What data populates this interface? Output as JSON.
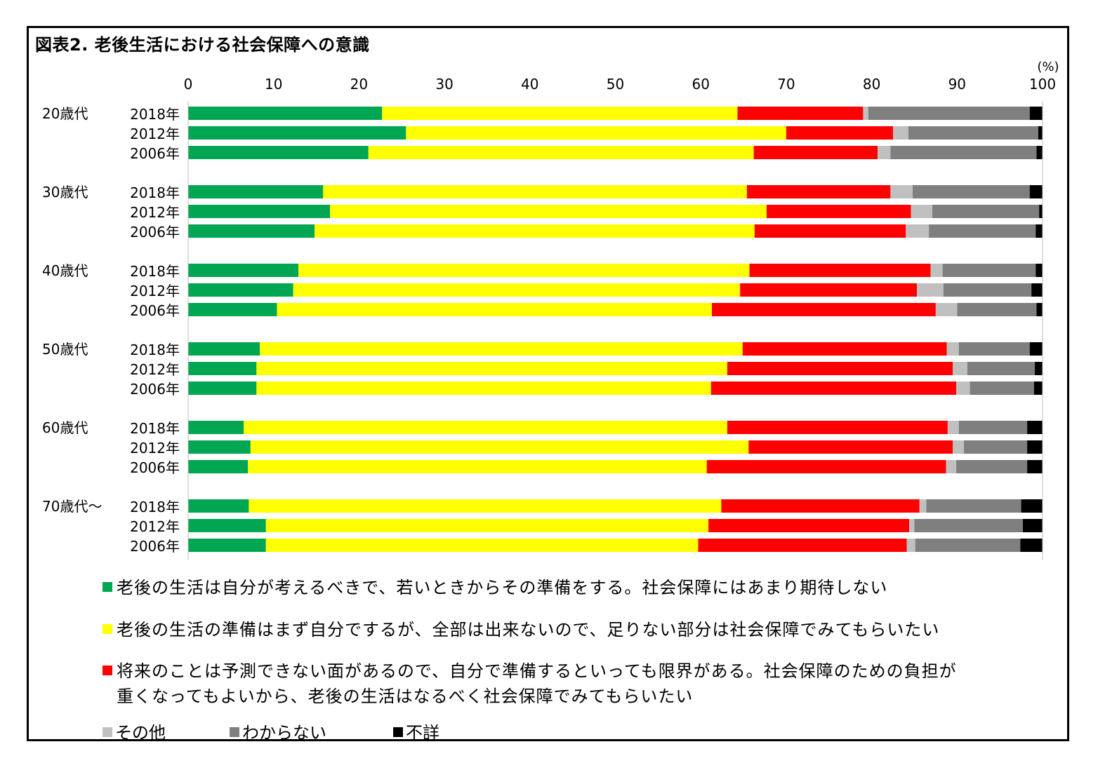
{
  "title": "図表2.  老後生活における社会保障への意識",
  "chart_data": {
    "type": "bar",
    "orientation": "horizontal",
    "stacked": true,
    "unit": "(%)",
    "xlim": [
      0,
      100
    ],
    "x_ticks": [
      "0",
      "10",
      "20",
      "30",
      "40",
      "50",
      "60",
      "70",
      "80",
      "90",
      "100"
    ],
    "groups": [
      {
        "label": "20歳代",
        "rows": [
          {
            "label": "2018年",
            "values": [
              22.7,
              41.6,
              14.7,
              0.6,
              18.9,
              1.5
            ]
          },
          {
            "label": "2012年",
            "values": [
              25.5,
              44.5,
              12.5,
              1.8,
              15.2,
              0.5
            ]
          },
          {
            "label": "2006年",
            "values": [
              21.1,
              45.1,
              14.5,
              1.5,
              17.1,
              0.7
            ]
          }
        ]
      },
      {
        "label": "30歳代",
        "rows": [
          {
            "label": "2018年",
            "values": [
              15.8,
              49.6,
              16.8,
              2.6,
              13.7,
              1.5
            ]
          },
          {
            "label": "2012年",
            "values": [
              16.6,
              51.1,
              16.9,
              2.5,
              12.5,
              0.4
            ]
          },
          {
            "label": "2006年",
            "values": [
              14.8,
              51.5,
              17.7,
              2.7,
              12.5,
              0.8
            ]
          }
        ]
      },
      {
        "label": "40歳代",
        "rows": [
          {
            "label": "2018年",
            "values": [
              12.9,
              52.8,
              21.2,
              1.4,
              10.9,
              0.8
            ]
          },
          {
            "label": "2012年",
            "values": [
              12.3,
              52.3,
              20.7,
              3.1,
              10.3,
              1.3
            ]
          },
          {
            "label": "2006年",
            "values": [
              10.4,
              50.9,
              26.2,
              2.5,
              9.3,
              0.7
            ]
          }
        ]
      },
      {
        "label": "50歳代",
        "rows": [
          {
            "label": "2018年",
            "values": [
              8.4,
              56.5,
              23.9,
              1.4,
              8.3,
              1.5
            ]
          },
          {
            "label": "2012年",
            "values": [
              8.0,
              55.1,
              26.4,
              1.7,
              7.9,
              0.9
            ]
          },
          {
            "label": "2006年",
            "values": [
              8.0,
              53.2,
              28.7,
              1.6,
              7.5,
              1.0
            ]
          }
        ]
      },
      {
        "label": "60歳代",
        "rows": [
          {
            "label": "2018年",
            "values": [
              6.5,
              56.6,
              25.8,
              1.3,
              8.0,
              1.8
            ]
          },
          {
            "label": "2012年",
            "values": [
              7.3,
              58.3,
              23.9,
              1.3,
              7.4,
              1.8
            ]
          },
          {
            "label": "2006年",
            "values": [
              7.0,
              53.7,
              28.0,
              1.2,
              8.3,
              1.8
            ]
          }
        ]
      },
      {
        "label": "70歳代～",
        "rows": [
          {
            "label": "2018年",
            "values": [
              7.1,
              55.3,
              23.2,
              0.8,
              11.1,
              2.5
            ]
          },
          {
            "label": "2012年",
            "values": [
              9.1,
              51.8,
              23.5,
              0.6,
              12.7,
              2.3
            ]
          },
          {
            "label": "2006年",
            "values": [
              9.1,
              50.6,
              24.4,
              1.0,
              12.3,
              2.6
            ]
          }
        ]
      }
    ],
    "series": [
      {
        "name": "老後の生活は自分が考えるべきで、若いときからその準備をする。社会保障にはあまり期待しない",
        "color": "#00a651"
      },
      {
        "name": "老後の生活の準備はまず自分でするが、全部は出来ないので、足りない部分は社会保障でみてもらいたい",
        "color": "#ffff00"
      },
      {
        "name": "将来のことは予測できない面があるので、自分で準備するといっても限界がある。社会保障のための負担が\n重くなってもよいから、老後の生活はなるべく社会保障でみてもらいたい",
        "color": "#ff0000"
      },
      {
        "name": "その他",
        "color": "#c0c0c0"
      },
      {
        "name": "わからない",
        "color": "#7f7f7f"
      },
      {
        "name": "不詳",
        "color": "#000000"
      }
    ],
    "legend_position": "bottom",
    "grid": false
  }
}
